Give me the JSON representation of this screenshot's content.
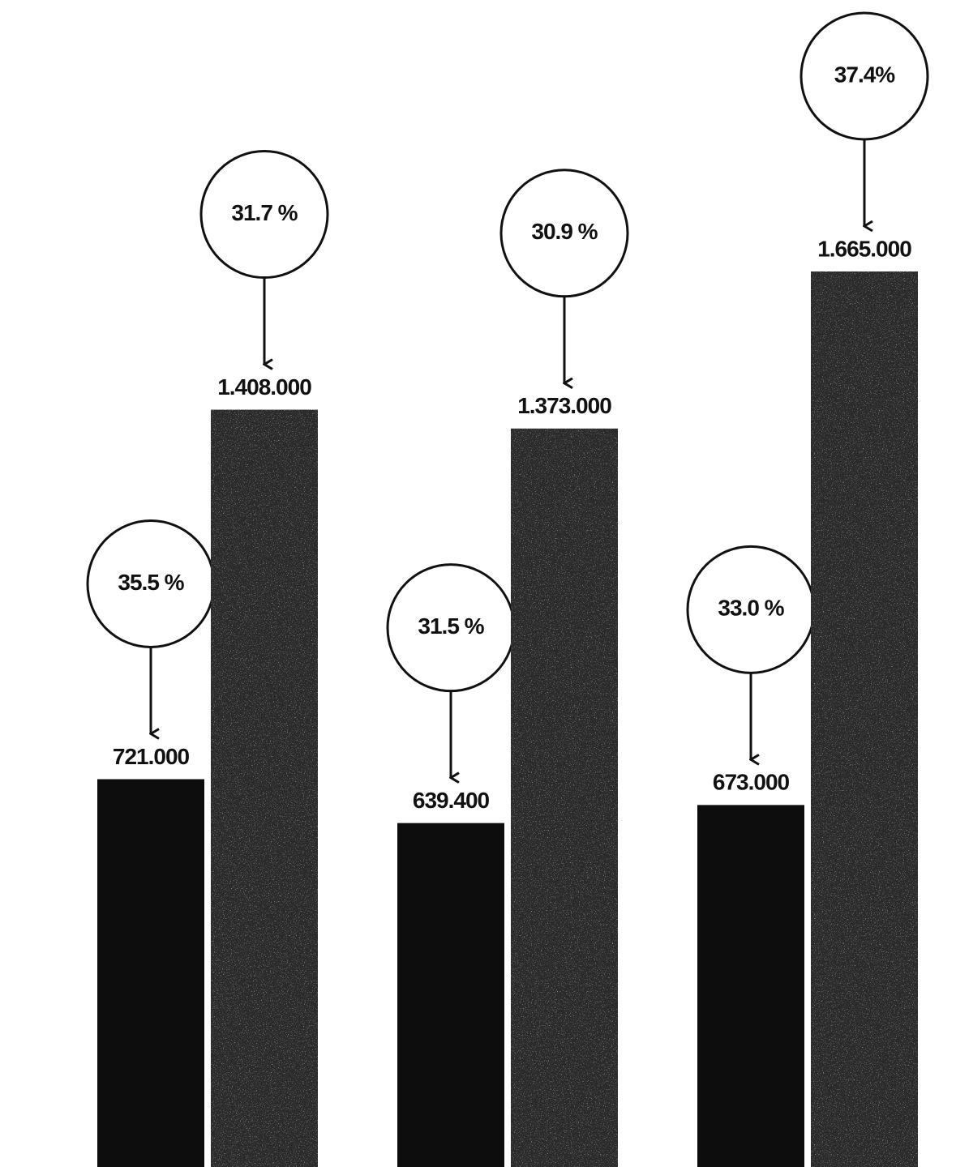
{
  "chart_data": {
    "type": "bar",
    "categories": [
      null,
      null,
      null
    ],
    "series": [
      {
        "color": "#0d0d0d",
        "values": [
          721000,
          639400,
          673000
        ],
        "value_labels": [
          "721.000",
          "639.400",
          "673.000"
        ],
        "percents": [
          35.5,
          31.5,
          33.0
        ],
        "percent_labels": [
          "35.5 %",
          "31.5 %",
          "33.0 %"
        ]
      },
      {
        "color": "#2b2b2b",
        "values": [
          1408000,
          1373000,
          1665000
        ],
        "value_labels": [
          "1.408.000",
          "1.373.000",
          "1.665.000"
        ],
        "percents": [
          31.7,
          30.9,
          37.4
        ],
        "percent_labels": [
          "31.7 %",
          "30.9 %",
          "37.4%"
        ]
      }
    ]
  }
}
